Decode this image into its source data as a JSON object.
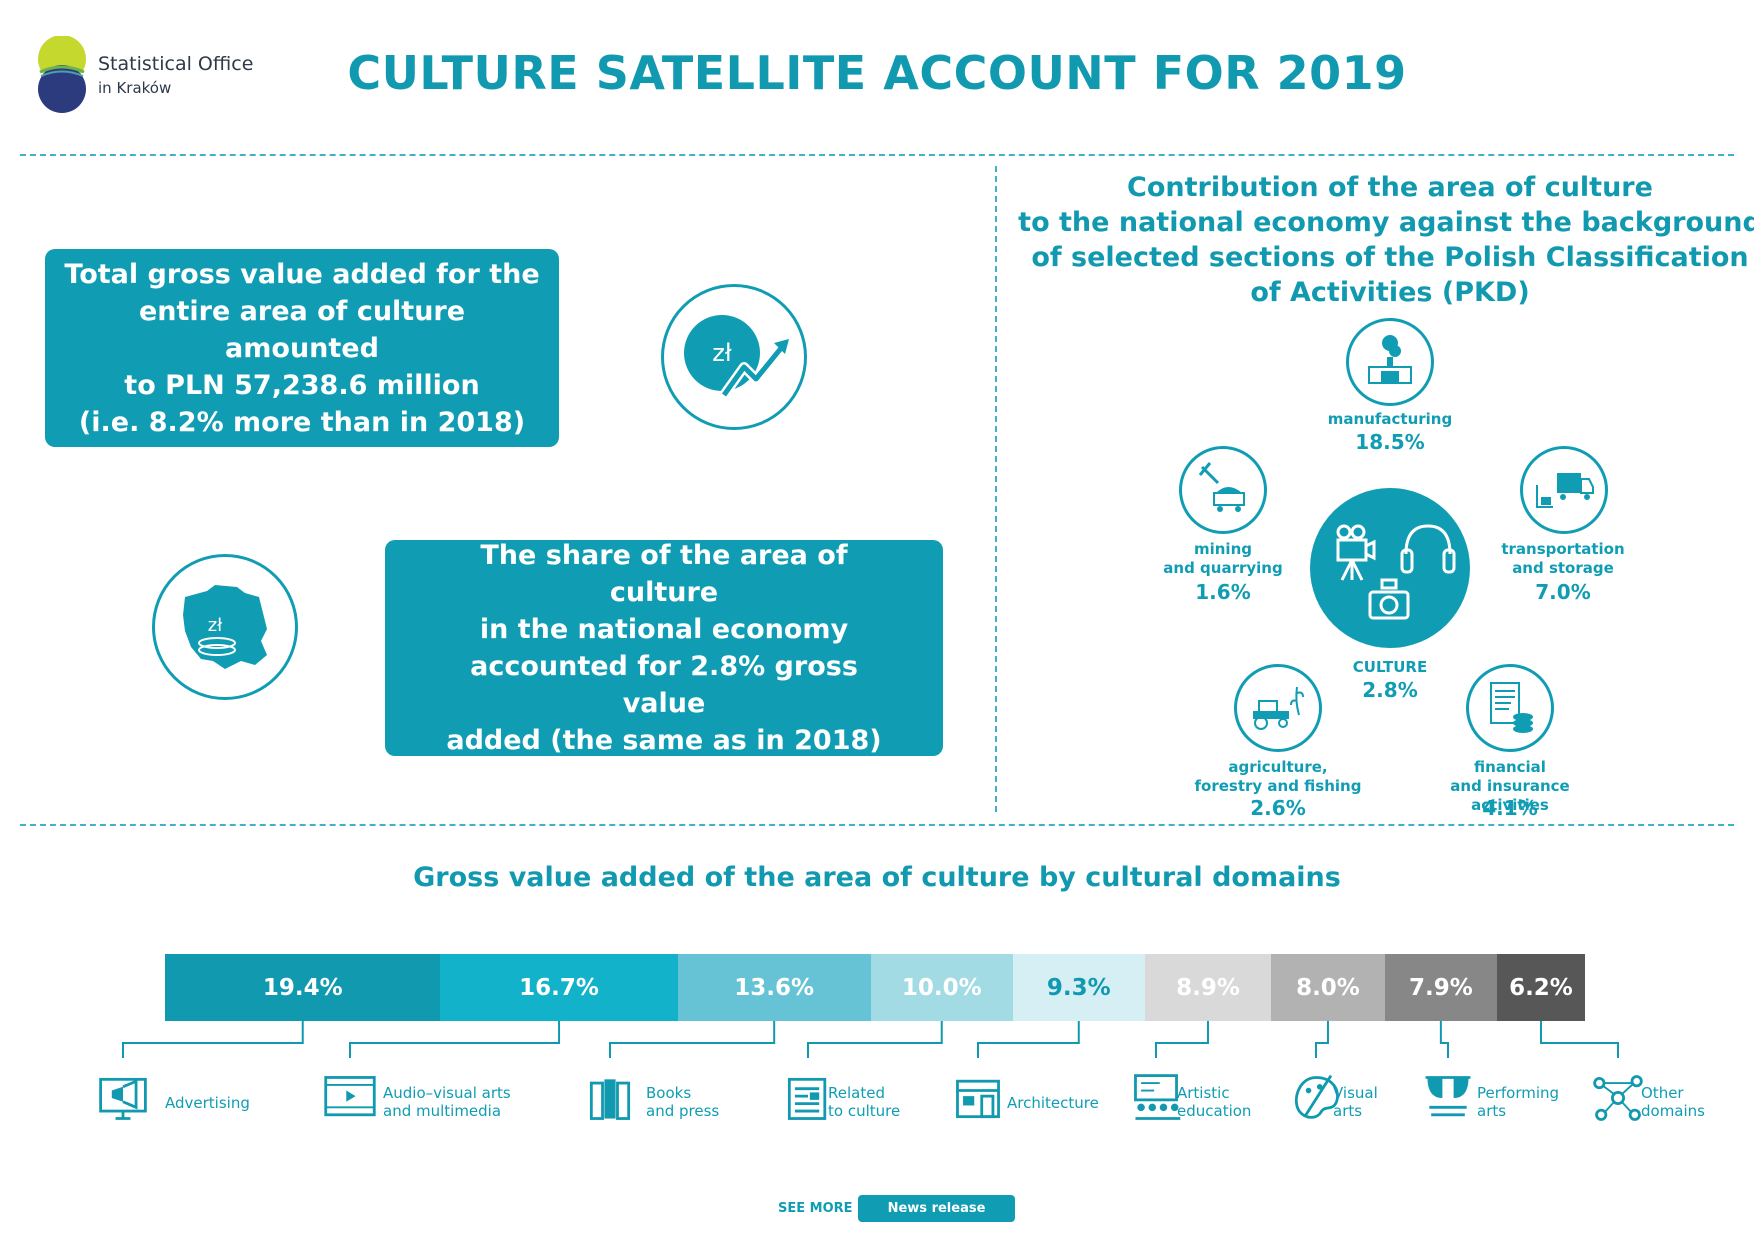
{
  "logo": {
    "name": "Statistical Office",
    "sub": "in Kraków"
  },
  "title": "CULTURE SATELLITE ACCOUNT FOR 2019",
  "box1": {
    "lines": [
      "Total gross value added for the",
      "entire area of culture amounted",
      "to PLN 57,238.6 million",
      "(i.e. 8.2% more than in 2018)"
    ]
  },
  "box2": {
    "lines": [
      "The share of the area of culture",
      "in the national economy",
      "accounted for 2.8% gross value",
      "added (the same as in 2018)"
    ]
  },
  "currency_symbol": "zł",
  "contribution": {
    "title_lines": [
      "Contribution of the area of culture",
      "to the national economy against the background",
      "of selected sections of the Polish Classification",
      "of Activities (PKD)"
    ],
    "culture": {
      "label": "CULTURE",
      "value": "2.8%"
    },
    "sections": [
      {
        "id": "manufacturing",
        "lines": [
          "manufacturing"
        ],
        "value": "18.5%",
        "icon": "factory-icon"
      },
      {
        "id": "mining",
        "lines": [
          "mining",
          "and quarrying"
        ],
        "value": "1.6%",
        "icon": "mining-cart-icon"
      },
      {
        "id": "transport",
        "lines": [
          "transportation",
          "and storage"
        ],
        "value": "7.0%",
        "icon": "truck-icon"
      },
      {
        "id": "agriculture",
        "lines": [
          "agriculture,",
          "forestry and fishing"
        ],
        "value": "2.6%",
        "icon": "tractor-icon"
      },
      {
        "id": "finance",
        "lines": [
          "financial",
          "and insurance activities"
        ],
        "value": "4.1%",
        "icon": "finance-document-icon"
      }
    ]
  },
  "chart_data": {
    "type": "bar",
    "orientation": "horizontal-stacked",
    "title": "Gross value added of the area of culture by cultural domains",
    "unit": "%",
    "categories": [
      "Advertising",
      "Audio–visual arts and multimedia",
      "Books and press",
      "Related to culture",
      "Architecture",
      "Artistic education",
      "Visual arts",
      "Performing arts",
      "Other domains"
    ],
    "values": [
      19.4,
      16.7,
      13.6,
      10.0,
      9.3,
      8.9,
      8.0,
      7.9,
      6.2
    ],
    "value_labels": [
      "19.4%",
      "16.7%",
      "13.6%",
      "10.0%",
      "9.3%",
      "8.9%",
      "8.0%",
      "7.9%",
      "6.2%"
    ],
    "colors": [
      "#1199b0",
      "#12b2cb",
      "#66c3d5",
      "#a3dbe5",
      "#d5eff4",
      "#d9d9d9",
      "#b2b2b2",
      "#878787",
      "#575757"
    ],
    "label_colors": [
      "#ffffff",
      "#ffffff",
      "#ffffff",
      "#ffffff",
      "#1199b0",
      "#ffffff",
      "#ffffff",
      "#ffffff",
      "#ffffff"
    ]
  },
  "domains": [
    {
      "lines": [
        "Advertising"
      ],
      "icon": "advertising-icon"
    },
    {
      "lines": [
        "Audio–visual arts",
        "and multimedia"
      ],
      "icon": "video-player-icon"
    },
    {
      "lines": [
        "Books",
        "and press"
      ],
      "icon": "books-icon"
    },
    {
      "lines": [
        "Related",
        "to culture"
      ],
      "icon": "newspaper-icon"
    },
    {
      "lines": [
        "Architecture"
      ],
      "icon": "building-icon"
    },
    {
      "lines": [
        "Artistic",
        "education"
      ],
      "icon": "classroom-icon"
    },
    {
      "lines": [
        "Visual",
        "arts"
      ],
      "icon": "palette-icon"
    },
    {
      "lines": [
        "Performing",
        "arts"
      ],
      "icon": "theater-icon"
    },
    {
      "lines": [
        "Other",
        "domains"
      ],
      "icon": "network-icon"
    }
  ],
  "footer": {
    "see_more": "SEE MORE",
    "button": "News release"
  }
}
